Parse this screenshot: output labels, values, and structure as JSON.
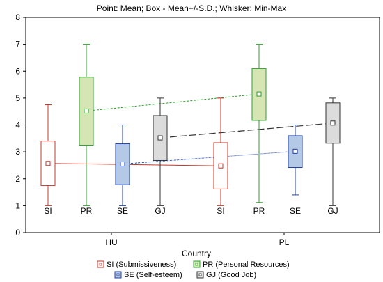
{
  "chart_data": {
    "type": "box",
    "title": "Point: Mean; Box - Mean+/-S.D.; Whisker: Min-Max",
    "xlabel": "Country",
    "ylabel": "",
    "ylim": [
      0,
      8
    ],
    "yticks": [
      "0",
      "1",
      "2",
      "3",
      "4",
      "5",
      "6",
      "7",
      "8"
    ],
    "groups": [
      "HU",
      "PL"
    ],
    "grid": false,
    "legend_position": "bottom",
    "series": [
      {
        "name": "SI (Submissiveness)",
        "short": "SI",
        "color": "#c0392b",
        "fill": "#ffffff",
        "boxes": [
          {
            "group": "HU",
            "mean": 2.57,
            "sd_low": 1.75,
            "sd_high": 3.4,
            "min": 1.0,
            "max": 4.75
          },
          {
            "group": "PL",
            "mean": 2.48,
            "sd_low": 1.62,
            "sd_high": 3.34,
            "min": 1.0,
            "max": 5.0
          }
        ]
      },
      {
        "name": "PR (Personal Resources)",
        "short": "PR",
        "color": "#2ca02c",
        "fill": "#d5e6b4",
        "boxes": [
          {
            "group": "HU",
            "mean": 4.52,
            "sd_low": 3.25,
            "sd_high": 5.78,
            "min": 1.0,
            "max": 7.0
          },
          {
            "group": "PL",
            "mean": 5.15,
            "sd_low": 4.17,
            "sd_high": 6.1,
            "min": 1.12,
            "max": 7.0
          }
        ]
      },
      {
        "name": "SE (Self-esteem)",
        "short": "SE",
        "color": "#1f3fa6",
        "fill": "#b3c9e6",
        "boxes": [
          {
            "group": "HU",
            "mean": 2.55,
            "sd_low": 1.78,
            "sd_high": 3.3,
            "min": 1.0,
            "max": 4.0
          },
          {
            "group": "PL",
            "mean": 3.02,
            "sd_low": 2.42,
            "sd_high": 3.6,
            "min": 1.4,
            "max": 4.0
          }
        ]
      },
      {
        "name": "GJ (Good Job)",
        "short": "GJ",
        "color": "#333333",
        "fill": "#dcdcdc",
        "boxes": [
          {
            "group": "HU",
            "mean": 3.52,
            "sd_low": 2.68,
            "sd_high": 4.35,
            "min": 1.0,
            "max": 5.0
          },
          {
            "group": "PL",
            "mean": 4.07,
            "sd_low": 3.32,
            "sd_high": 4.82,
            "min": 1.0,
            "max": 5.0
          }
        ]
      }
    ]
  }
}
